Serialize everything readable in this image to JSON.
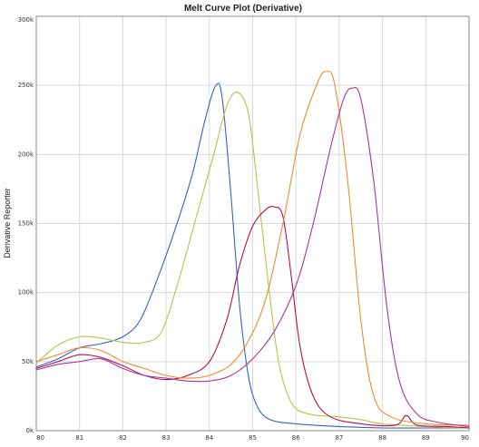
{
  "chart_data": {
    "type": "line",
    "title": "Melt Curve Plot (Derivative)",
    "xlabel": "",
    "ylabel": "Derivative Reporter",
    "xlim": [
      80,
      90
    ],
    "ylim": [
      0,
      300000
    ],
    "x_ticks": [
      "80",
      "81",
      "82",
      "83",
      "84",
      "85",
      "86",
      "87",
      "88",
      "89",
      "90"
    ],
    "y_ticks": [
      "0k",
      "50k",
      "100k",
      "150k",
      "200k",
      "250k",
      "300k"
    ],
    "grid": true,
    "legend": "none",
    "series": [
      {
        "color": "#3a5fc8",
        "points": [
          [
            80,
            46000
          ],
          [
            80.5,
            52000
          ],
          [
            81,
            60000
          ],
          [
            81.5,
            63000
          ],
          [
            82,
            68000
          ],
          [
            82.4,
            80000
          ],
          [
            82.8,
            110000
          ],
          [
            83.2,
            145000
          ],
          [
            83.6,
            185000
          ],
          [
            83.9,
            225000
          ],
          [
            84.15,
            250000
          ],
          [
            84.3,
            240000
          ],
          [
            84.5,
            170000
          ],
          [
            84.7,
            90000
          ],
          [
            84.9,
            40000
          ],
          [
            85.1,
            18000
          ],
          [
            85.4,
            8000
          ],
          [
            86,
            5000
          ],
          [
            87,
            3000
          ],
          [
            88,
            2000
          ],
          [
            89,
            2000
          ],
          [
            90,
            2000
          ]
        ]
      },
      {
        "color": "#b8c24a",
        "points": [
          [
            80,
            49000
          ],
          [
            80.5,
            62000
          ],
          [
            81,
            68000
          ],
          [
            81.5,
            67000
          ],
          [
            82,
            64000
          ],
          [
            82.5,
            64000
          ],
          [
            82.9,
            72000
          ],
          [
            83.3,
            110000
          ],
          [
            83.7,
            155000
          ],
          [
            84.1,
            200000
          ],
          [
            84.4,
            235000
          ],
          [
            84.65,
            245000
          ],
          [
            84.9,
            230000
          ],
          [
            85.1,
            180000
          ],
          [
            85.35,
            110000
          ],
          [
            85.6,
            50000
          ],
          [
            85.9,
            20000
          ],
          [
            86.3,
            12000
          ],
          [
            87,
            10000
          ],
          [
            87.5,
            8000
          ],
          [
            88,
            5000
          ],
          [
            89,
            3000
          ],
          [
            90,
            2000
          ]
        ]
      },
      {
        "color": "#b0124a",
        "points": [
          [
            80,
            45000
          ],
          [
            80.5,
            50000
          ],
          [
            81,
            55000
          ],
          [
            81.5,
            53000
          ],
          [
            82,
            47000
          ],
          [
            82.5,
            40000
          ],
          [
            83,
            37000
          ],
          [
            83.5,
            40000
          ],
          [
            84,
            50000
          ],
          [
            84.4,
            80000
          ],
          [
            84.7,
            120000
          ],
          [
            85,
            148000
          ],
          [
            85.3,
            160000
          ],
          [
            85.5,
            162000
          ],
          [
            85.7,
            155000
          ],
          [
            85.9,
            110000
          ],
          [
            86.1,
            60000
          ],
          [
            86.4,
            25000
          ],
          [
            86.8,
            10000
          ],
          [
            87.5,
            5000
          ],
          [
            88.3,
            4000
          ],
          [
            88.55,
            11000
          ],
          [
            88.8,
            4000
          ],
          [
            89.5,
            3000
          ],
          [
            90,
            2000
          ]
        ]
      },
      {
        "color": "#f08a30",
        "points": [
          [
            80,
            50000
          ],
          [
            80.5,
            55000
          ],
          [
            81,
            60000
          ],
          [
            81.5,
            58000
          ],
          [
            82,
            50000
          ],
          [
            82.5,
            45000
          ],
          [
            83,
            40000
          ],
          [
            83.5,
            38000
          ],
          [
            84,
            40000
          ],
          [
            84.5,
            48000
          ],
          [
            84.9,
            65000
          ],
          [
            85.3,
            95000
          ],
          [
            85.7,
            150000
          ],
          [
            86.1,
            215000
          ],
          [
            86.5,
            252000
          ],
          [
            86.7,
            260000
          ],
          [
            86.9,
            250000
          ],
          [
            87.2,
            180000
          ],
          [
            87.5,
            80000
          ],
          [
            87.8,
            25000
          ],
          [
            88.2,
            10000
          ],
          [
            89,
            5000
          ],
          [
            90,
            4000
          ]
        ]
      },
      {
        "color": "#a8359a",
        "points": [
          [
            80,
            44000
          ],
          [
            80.5,
            48000
          ],
          [
            81,
            50000
          ],
          [
            81.5,
            52000
          ],
          [
            82,
            45000
          ],
          [
            82.5,
            40000
          ],
          [
            83,
            38000
          ],
          [
            83.5,
            36000
          ],
          [
            84,
            36000
          ],
          [
            84.5,
            40000
          ],
          [
            85,
            52000
          ],
          [
            85.5,
            72000
          ],
          [
            86,
            105000
          ],
          [
            86.4,
            150000
          ],
          [
            86.8,
            205000
          ],
          [
            87.1,
            240000
          ],
          [
            87.3,
            248000
          ],
          [
            87.5,
            240000
          ],
          [
            87.8,
            180000
          ],
          [
            88.1,
            90000
          ],
          [
            88.4,
            35000
          ],
          [
            88.8,
            12000
          ],
          [
            89.3,
            6000
          ],
          [
            90,
            3000
          ]
        ]
      }
    ]
  }
}
